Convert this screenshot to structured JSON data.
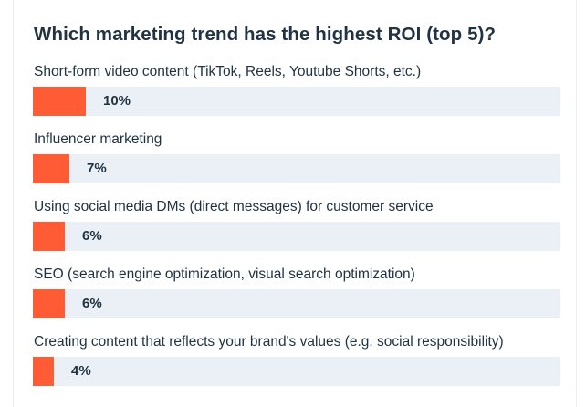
{
  "chart_data": {
    "type": "bar",
    "orientation": "horizontal",
    "title": "Which marketing trend has the highest ROI (top 5)?",
    "categories": [
      "Short-form video content (TikTok, Reels, Youtube Shorts, etc.)",
      "Influencer marketing",
      "Using social media DMs (direct messages) for customer service",
      "SEO (search engine optimization, visual search optimization)",
      "Creating content that reflects your brand's values (e.g. social responsibility)"
    ],
    "values": [
      10,
      7,
      6,
      6,
      4
    ],
    "value_labels": [
      "10%",
      "7%",
      "6%",
      "6%",
      "4%"
    ],
    "unit": "%",
    "xlim": [
      0,
      100
    ],
    "bar_color": "#ff5c35",
    "track_color": "#eaf0f6",
    "grid": false,
    "legend": false
  }
}
